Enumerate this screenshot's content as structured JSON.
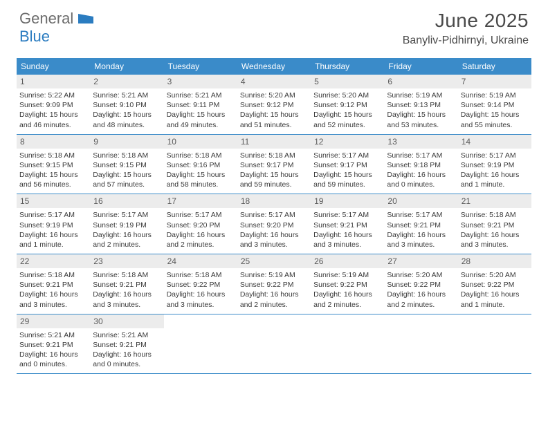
{
  "logo": {
    "part1": "General",
    "part2": "Blue"
  },
  "title": "June 2025",
  "location": "Banyliv-Pidhirnyi, Ukraine",
  "colors": {
    "header_blue": "#3a8bc9",
    "logo_blue": "#2b7cc0",
    "logo_gray": "#6c6c6c",
    "daynum_bg": "#ececec",
    "text": "#3a3a3a",
    "row_border": "#3a8bc9"
  },
  "typography": {
    "title_fontsize": 28,
    "location_fontsize": 16,
    "dow_fontsize": 12,
    "body_fontsize": 10.5
  },
  "daysOfWeek": [
    "Sunday",
    "Monday",
    "Tuesday",
    "Wednesday",
    "Thursday",
    "Friday",
    "Saturday"
  ],
  "weeks": [
    [
      {
        "n": "1",
        "sr": "Sunrise: 5:22 AM",
        "ss": "Sunset: 9:09 PM",
        "d1": "Daylight: 15 hours",
        "d2": "and 46 minutes."
      },
      {
        "n": "2",
        "sr": "Sunrise: 5:21 AM",
        "ss": "Sunset: 9:10 PM",
        "d1": "Daylight: 15 hours",
        "d2": "and 48 minutes."
      },
      {
        "n": "3",
        "sr": "Sunrise: 5:21 AM",
        "ss": "Sunset: 9:11 PM",
        "d1": "Daylight: 15 hours",
        "d2": "and 49 minutes."
      },
      {
        "n": "4",
        "sr": "Sunrise: 5:20 AM",
        "ss": "Sunset: 9:12 PM",
        "d1": "Daylight: 15 hours",
        "d2": "and 51 minutes."
      },
      {
        "n": "5",
        "sr": "Sunrise: 5:20 AM",
        "ss": "Sunset: 9:12 PM",
        "d1": "Daylight: 15 hours",
        "d2": "and 52 minutes."
      },
      {
        "n": "6",
        "sr": "Sunrise: 5:19 AM",
        "ss": "Sunset: 9:13 PM",
        "d1": "Daylight: 15 hours",
        "d2": "and 53 minutes."
      },
      {
        "n": "7",
        "sr": "Sunrise: 5:19 AM",
        "ss": "Sunset: 9:14 PM",
        "d1": "Daylight: 15 hours",
        "d2": "and 55 minutes."
      }
    ],
    [
      {
        "n": "8",
        "sr": "Sunrise: 5:18 AM",
        "ss": "Sunset: 9:15 PM",
        "d1": "Daylight: 15 hours",
        "d2": "and 56 minutes."
      },
      {
        "n": "9",
        "sr": "Sunrise: 5:18 AM",
        "ss": "Sunset: 9:15 PM",
        "d1": "Daylight: 15 hours",
        "d2": "and 57 minutes."
      },
      {
        "n": "10",
        "sr": "Sunrise: 5:18 AM",
        "ss": "Sunset: 9:16 PM",
        "d1": "Daylight: 15 hours",
        "d2": "and 58 minutes."
      },
      {
        "n": "11",
        "sr": "Sunrise: 5:18 AM",
        "ss": "Sunset: 9:17 PM",
        "d1": "Daylight: 15 hours",
        "d2": "and 59 minutes."
      },
      {
        "n": "12",
        "sr": "Sunrise: 5:17 AM",
        "ss": "Sunset: 9:17 PM",
        "d1": "Daylight: 15 hours",
        "d2": "and 59 minutes."
      },
      {
        "n": "13",
        "sr": "Sunrise: 5:17 AM",
        "ss": "Sunset: 9:18 PM",
        "d1": "Daylight: 16 hours",
        "d2": "and 0 minutes."
      },
      {
        "n": "14",
        "sr": "Sunrise: 5:17 AM",
        "ss": "Sunset: 9:19 PM",
        "d1": "Daylight: 16 hours",
        "d2": "and 1 minute."
      }
    ],
    [
      {
        "n": "15",
        "sr": "Sunrise: 5:17 AM",
        "ss": "Sunset: 9:19 PM",
        "d1": "Daylight: 16 hours",
        "d2": "and 1 minute."
      },
      {
        "n": "16",
        "sr": "Sunrise: 5:17 AM",
        "ss": "Sunset: 9:19 PM",
        "d1": "Daylight: 16 hours",
        "d2": "and 2 minutes."
      },
      {
        "n": "17",
        "sr": "Sunrise: 5:17 AM",
        "ss": "Sunset: 9:20 PM",
        "d1": "Daylight: 16 hours",
        "d2": "and 2 minutes."
      },
      {
        "n": "18",
        "sr": "Sunrise: 5:17 AM",
        "ss": "Sunset: 9:20 PM",
        "d1": "Daylight: 16 hours",
        "d2": "and 3 minutes."
      },
      {
        "n": "19",
        "sr": "Sunrise: 5:17 AM",
        "ss": "Sunset: 9:21 PM",
        "d1": "Daylight: 16 hours",
        "d2": "and 3 minutes."
      },
      {
        "n": "20",
        "sr": "Sunrise: 5:17 AM",
        "ss": "Sunset: 9:21 PM",
        "d1": "Daylight: 16 hours",
        "d2": "and 3 minutes."
      },
      {
        "n": "21",
        "sr": "Sunrise: 5:18 AM",
        "ss": "Sunset: 9:21 PM",
        "d1": "Daylight: 16 hours",
        "d2": "and 3 minutes."
      }
    ],
    [
      {
        "n": "22",
        "sr": "Sunrise: 5:18 AM",
        "ss": "Sunset: 9:21 PM",
        "d1": "Daylight: 16 hours",
        "d2": "and 3 minutes."
      },
      {
        "n": "23",
        "sr": "Sunrise: 5:18 AM",
        "ss": "Sunset: 9:21 PM",
        "d1": "Daylight: 16 hours",
        "d2": "and 3 minutes."
      },
      {
        "n": "24",
        "sr": "Sunrise: 5:18 AM",
        "ss": "Sunset: 9:22 PM",
        "d1": "Daylight: 16 hours",
        "d2": "and 3 minutes."
      },
      {
        "n": "25",
        "sr": "Sunrise: 5:19 AM",
        "ss": "Sunset: 9:22 PM",
        "d1": "Daylight: 16 hours",
        "d2": "and 2 minutes."
      },
      {
        "n": "26",
        "sr": "Sunrise: 5:19 AM",
        "ss": "Sunset: 9:22 PM",
        "d1": "Daylight: 16 hours",
        "d2": "and 2 minutes."
      },
      {
        "n": "27",
        "sr": "Sunrise: 5:20 AM",
        "ss": "Sunset: 9:22 PM",
        "d1": "Daylight: 16 hours",
        "d2": "and 2 minutes."
      },
      {
        "n": "28",
        "sr": "Sunrise: 5:20 AM",
        "ss": "Sunset: 9:22 PM",
        "d1": "Daylight: 16 hours",
        "d2": "and 1 minute."
      }
    ],
    [
      {
        "n": "29",
        "sr": "Sunrise: 5:21 AM",
        "ss": "Sunset: 9:21 PM",
        "d1": "Daylight: 16 hours",
        "d2": "and 0 minutes."
      },
      {
        "n": "30",
        "sr": "Sunrise: 5:21 AM",
        "ss": "Sunset: 9:21 PM",
        "d1": "Daylight: 16 hours",
        "d2": "and 0 minutes."
      },
      null,
      null,
      null,
      null,
      null
    ]
  ]
}
